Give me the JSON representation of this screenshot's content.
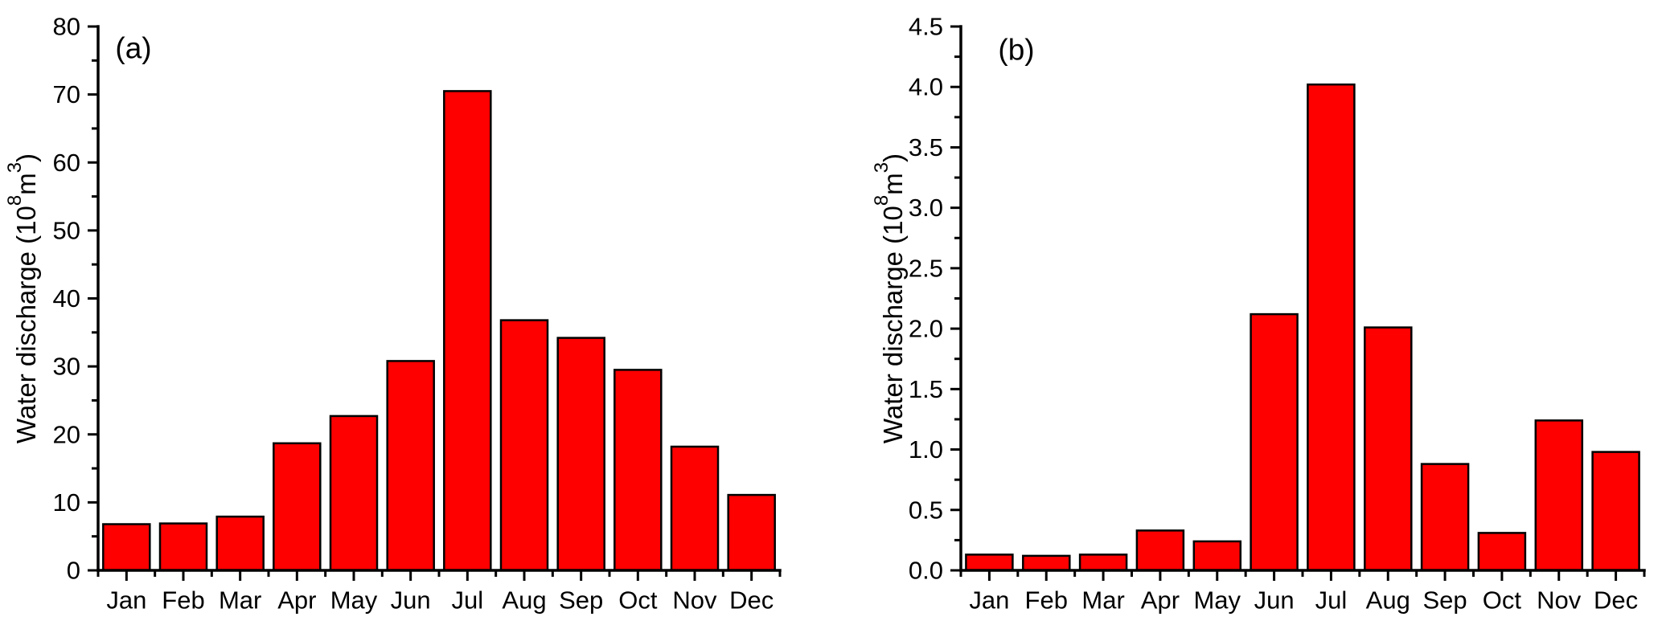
{
  "figure": {
    "background": "#ffffff",
    "bar_fill": "#ff0000",
    "bar_edge": "#000000",
    "axis_color": "#000000"
  },
  "chart_data": [
    {
      "type": "bar",
      "panel_label": "(a)",
      "categories": [
        "Jan",
        "Feb",
        "Mar",
        "Apr",
        "May",
        "Jun",
        "Jul",
        "Aug",
        "Sep",
        "Oct",
        "Nov",
        "Dec"
      ],
      "values": [
        6.8,
        6.9,
        7.9,
        18.7,
        22.7,
        30.8,
        70.5,
        36.8,
        34.2,
        29.5,
        18.2,
        11.1
      ],
      "title": "",
      "xlabel": "",
      "ylabel_plain": "Water discharge (10⁸m³)",
      "ylabel_parts": [
        {
          "t": "Water discharge (10"
        },
        {
          "t": "8",
          "sup": true
        },
        {
          "t": "m"
        },
        {
          "t": "3",
          "sup": true
        },
        {
          "t": ")"
        }
      ],
      "ylim": [
        0,
        80
      ],
      "ytick_values": [
        0,
        10,
        20,
        30,
        40,
        50,
        60,
        70,
        80
      ],
      "ytick_labels": [
        "0",
        "10",
        "20",
        "30",
        "40",
        "50",
        "60",
        "70",
        "80"
      ],
      "ytick_minor_step": 5,
      "grid": false,
      "legend": null
    },
    {
      "type": "bar",
      "panel_label": "(b)",
      "categories": [
        "Jan",
        "Feb",
        "Mar",
        "Apr",
        "May",
        "Jun",
        "Jul",
        "Aug",
        "Sep",
        "Oct",
        "Nov",
        "Dec"
      ],
      "values": [
        0.13,
        0.12,
        0.13,
        0.33,
        0.24,
        2.12,
        4.02,
        2.01,
        0.88,
        0.31,
        1.24,
        0.98
      ],
      "title": "",
      "xlabel": "",
      "ylabel_plain": "Water discharge (10⁸m³)",
      "ylabel_parts": [
        {
          "t": "Water discharge (10"
        },
        {
          "t": "8",
          "sup": true
        },
        {
          "t": "m"
        },
        {
          "t": "3",
          "sup": true
        },
        {
          "t": ")"
        }
      ],
      "ylim": [
        0,
        4.5
      ],
      "ytick_values": [
        0.0,
        0.5,
        1.0,
        1.5,
        2.0,
        2.5,
        3.0,
        3.5,
        4.0,
        4.5
      ],
      "ytick_labels": [
        "0.0",
        "0.5",
        "1.0",
        "1.5",
        "2.0",
        "2.5",
        "3.0",
        "3.5",
        "4.0",
        "4.5"
      ],
      "ytick_minor_step": 0.25,
      "grid": false,
      "legend": null
    }
  ]
}
